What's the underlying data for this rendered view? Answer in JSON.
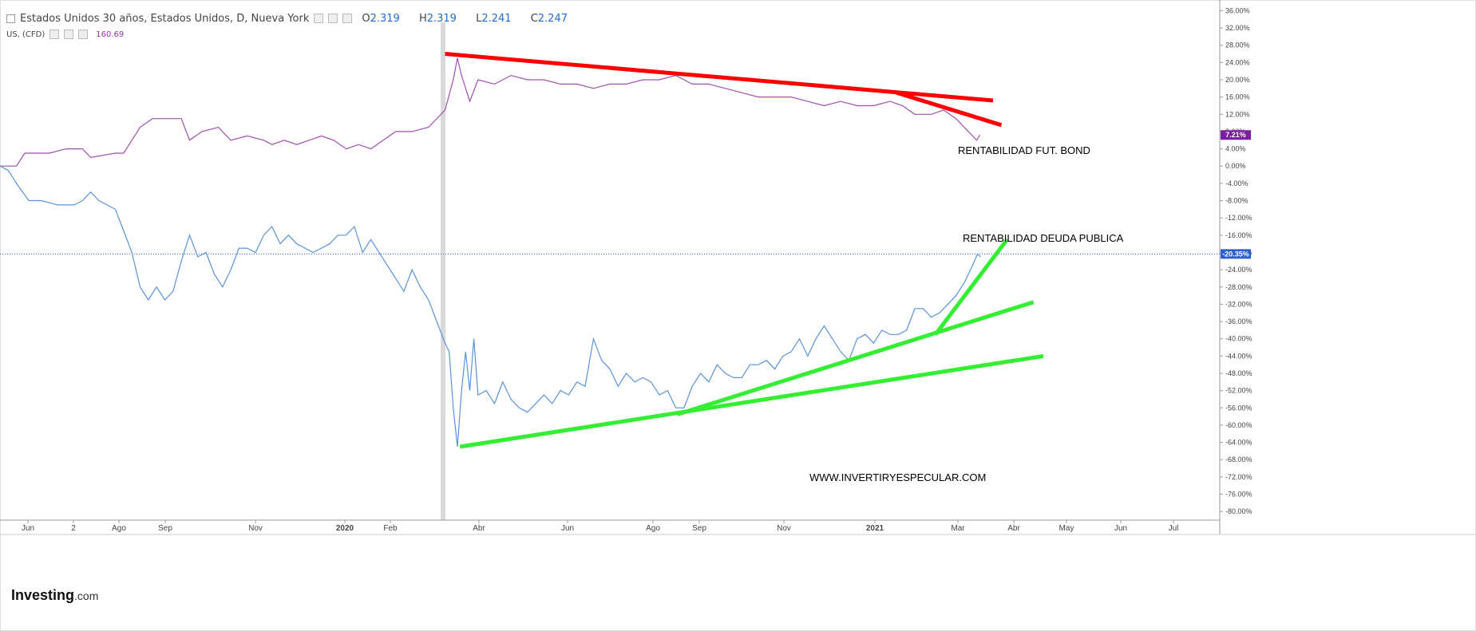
{
  "legend": {
    "title": "Estados Unidos 30 años, Estados Unidos, D, Nueva York",
    "o_label": "O",
    "o_value": "2.319",
    "h_label": "H",
    "h_value": "2.319",
    "l_label": "L",
    "l_value": "2.241",
    "c_label": "C",
    "c_value": "2.247",
    "second_name": "US, (CFD)",
    "second_value": "160.69"
  },
  "branding": {
    "logo_bold": "Investing",
    "logo_suffix": ".com"
  },
  "colors": {
    "purple": "#a04fb0",
    "blue": "#5a93d8",
    "red": "#ff0000",
    "green": "#33ee33",
    "badge_purple": "#7b1fa2",
    "badge_blue": "#2f5fcf"
  },
  "chart_data": {
    "type": "line",
    "x_axis": {
      "ticks": [
        "Jun",
        "2",
        "Ago",
        "Sep",
        "Nov",
        "2020",
        "Feb",
        "Abr",
        "Jun",
        "Ago",
        "Sep",
        "Nov",
        "2021",
        "Mar",
        "Abr",
        "May",
        "Jun",
        "Jul"
      ]
    },
    "y_axis": {
      "ticks": [
        "36.00%",
        "32.00%",
        "28.00%",
        "24.00%",
        "20.00%",
        "16.00%",
        "12.00%",
        "8.00%",
        "4.00%",
        "0.00%",
        "-4.00%",
        "-8.00%",
        "-12.00%",
        "-16.00%",
        "-20.00%",
        "-24.00%",
        "-28.00%",
        "-32.00%",
        "-36.00%",
        "-40.00%",
        "-44.00%",
        "-48.00%",
        "-52.00%",
        "-56.00%",
        "-60.00%",
        "-64.00%",
        "-68.00%",
        "-72.00%",
        "-76.00%",
        "-80.00%"
      ],
      "range": [
        -82,
        37
      ]
    },
    "series": [
      {
        "name": "US, (CFD)",
        "color": "#a04fb0",
        "last_label": "7.21%",
        "points": [
          [
            0,
            0
          ],
          [
            20,
            0
          ],
          [
            30,
            3
          ],
          [
            60,
            3
          ],
          [
            80,
            4
          ],
          [
            100,
            4
          ],
          [
            110,
            2
          ],
          [
            140,
            3
          ],
          [
            150,
            3
          ],
          [
            170,
            9
          ],
          [
            185,
            11
          ],
          [
            200,
            11
          ],
          [
            220,
            11
          ],
          [
            230,
            6
          ],
          [
            245,
            8
          ],
          [
            265,
            9
          ],
          [
            280,
            6
          ],
          [
            300,
            7
          ],
          [
            320,
            6
          ],
          [
            330,
            5
          ],
          [
            345,
            6
          ],
          [
            360,
            5
          ],
          [
            375,
            6
          ],
          [
            390,
            7
          ],
          [
            405,
            6
          ],
          [
            420,
            4
          ],
          [
            435,
            5
          ],
          [
            450,
            4
          ],
          [
            465,
            6
          ],
          [
            480,
            8
          ],
          [
            500,
            8
          ],
          [
            520,
            9
          ],
          [
            540,
            13
          ],
          [
            550,
            20
          ],
          [
            555,
            25
          ],
          [
            560,
            21
          ],
          [
            570,
            15
          ],
          [
            580,
            20
          ],
          [
            600,
            19
          ],
          [
            620,
            21
          ],
          [
            640,
            20
          ],
          [
            660,
            20
          ],
          [
            680,
            19
          ],
          [
            700,
            19
          ],
          [
            720,
            18
          ],
          [
            740,
            19
          ],
          [
            760,
            19
          ],
          [
            780,
            20
          ],
          [
            800,
            20
          ],
          [
            820,
            21
          ],
          [
            840,
            19
          ],
          [
            860,
            19
          ],
          [
            880,
            18
          ],
          [
            900,
            17
          ],
          [
            920,
            16
          ],
          [
            940,
            16
          ],
          [
            960,
            16
          ],
          [
            980,
            15
          ],
          [
            1000,
            14
          ],
          [
            1020,
            15
          ],
          [
            1040,
            14
          ],
          [
            1060,
            14
          ],
          [
            1080,
            15
          ],
          [
            1095,
            14
          ],
          [
            1110,
            12
          ],
          [
            1130,
            12
          ],
          [
            1145,
            13
          ],
          [
            1160,
            11
          ],
          [
            1175,
            8
          ],
          [
            1185,
            6
          ],
          [
            1189,
            7.21
          ]
        ]
      },
      {
        "name": "RENTABILIDAD DEUDA PUBLICA",
        "color": "#5a93d8",
        "last_label": "-20.35%",
        "points": [
          [
            0,
            0
          ],
          [
            10,
            -1
          ],
          [
            20,
            -4
          ],
          [
            35,
            -8
          ],
          [
            50,
            -8
          ],
          [
            70,
            -9
          ],
          [
            90,
            -9
          ],
          [
            100,
            -8
          ],
          [
            110,
            -6
          ],
          [
            120,
            -8
          ],
          [
            130,
            -9
          ],
          [
            140,
            -10
          ],
          [
            150,
            -15
          ],
          [
            160,
            -20
          ],
          [
            170,
            -28
          ],
          [
            180,
            -31
          ],
          [
            190,
            -28
          ],
          [
            200,
            -31
          ],
          [
            210,
            -29
          ],
          [
            220,
            -22
          ],
          [
            230,
            -16
          ],
          [
            240,
            -21
          ],
          [
            250,
            -20
          ],
          [
            260,
            -25
          ],
          [
            270,
            -28
          ],
          [
            280,
            -24
          ],
          [
            290,
            -19
          ],
          [
            300,
            -19
          ],
          [
            310,
            -20
          ],
          [
            320,
            -16
          ],
          [
            330,
            -14
          ],
          [
            340,
            -18
          ],
          [
            350,
            -16
          ],
          [
            360,
            -18
          ],
          [
            380,
            -20
          ],
          [
            400,
            -18
          ],
          [
            410,
            -16
          ],
          [
            420,
            -16
          ],
          [
            430,
            -14
          ],
          [
            440,
            -20
          ],
          [
            450,
            -17
          ],
          [
            460,
            -20
          ],
          [
            470,
            -23
          ],
          [
            480,
            -26
          ],
          [
            490,
            -29
          ],
          [
            500,
            -24
          ],
          [
            510,
            -28
          ],
          [
            520,
            -31
          ],
          [
            530,
            -36
          ],
          [
            540,
            -41
          ],
          [
            545,
            -43
          ],
          [
            550,
            -56
          ],
          [
            555,
            -65
          ],
          [
            560,
            -52
          ],
          [
            565,
            -43
          ],
          [
            570,
            -52
          ],
          [
            575,
            -40
          ],
          [
            580,
            -53
          ],
          [
            590,
            -52
          ],
          [
            600,
            -55
          ],
          [
            610,
            -50
          ],
          [
            620,
            -54
          ],
          [
            630,
            -56
          ],
          [
            640,
            -57
          ],
          [
            650,
            -55
          ],
          [
            660,
            -53
          ],
          [
            670,
            -55
          ],
          [
            680,
            -52
          ],
          [
            690,
            -53
          ],
          [
            700,
            -50
          ],
          [
            710,
            -51
          ],
          [
            720,
            -40
          ],
          [
            730,
            -45
          ],
          [
            740,
            -47
          ],
          [
            750,
            -51
          ],
          [
            760,
            -48
          ],
          [
            770,
            -50
          ],
          [
            780,
            -49
          ],
          [
            790,
            -50
          ],
          [
            800,
            -53
          ],
          [
            810,
            -52
          ],
          [
            820,
            -56
          ],
          [
            830,
            -56
          ],
          [
            840,
            -51
          ],
          [
            850,
            -48
          ],
          [
            860,
            -50
          ],
          [
            870,
            -46
          ],
          [
            880,
            -48
          ],
          [
            890,
            -49
          ],
          [
            900,
            -49
          ],
          [
            910,
            -46
          ],
          [
            920,
            -46
          ],
          [
            930,
            -45
          ],
          [
            940,
            -47
          ],
          [
            950,
            -44
          ],
          [
            960,
            -43
          ],
          [
            970,
            -40
          ],
          [
            980,
            -44
          ],
          [
            990,
            -40
          ],
          [
            1000,
            -37
          ],
          [
            1010,
            -40
          ],
          [
            1020,
            -43
          ],
          [
            1030,
            -45
          ],
          [
            1040,
            -40
          ],
          [
            1050,
            -39
          ],
          [
            1060,
            -41
          ],
          [
            1070,
            -38
          ],
          [
            1080,
            -39
          ],
          [
            1090,
            -39
          ],
          [
            1100,
            -38
          ],
          [
            1110,
            -33
          ],
          [
            1120,
            -33
          ],
          [
            1130,
            -35
          ],
          [
            1140,
            -34
          ],
          [
            1150,
            -32
          ],
          [
            1160,
            -30
          ],
          [
            1170,
            -27
          ],
          [
            1180,
            -23
          ],
          [
            1186,
            -20.35
          ],
          [
            1190,
            -21
          ]
        ]
      }
    ],
    "trendlines": [
      {
        "color": "#ff0000",
        "from": [
          540,
          26
        ],
        "to": [
          1205,
          15.2
        ]
      },
      {
        "color": "#ff0000",
        "from": [
          1088,
          17
        ],
        "to": [
          1215,
          9.5
        ]
      },
      {
        "color": "#33ee33",
        "from": [
          558,
          -65
        ],
        "to": [
          1266,
          -44
        ]
      },
      {
        "color": "#33ee33",
        "from": [
          822,
          -57.5
        ],
        "to": [
          1254,
          -31.5
        ]
      },
      {
        "color": "#33ee33",
        "from": [
          1135,
          -39
        ],
        "to": [
          1222,
          -17
        ]
      }
    ],
    "annotations": [
      {
        "text": "RENTABILIDAD FUT. BOND"
      },
      {
        "text": "RENTABILIDAD DEUDA PUBLICA"
      },
      {
        "text": "WWW.INVERTIRYESPECULAR.COM"
      }
    ],
    "crosshair_value": -20.35,
    "x_range": [
      0,
      1480
    ]
  }
}
